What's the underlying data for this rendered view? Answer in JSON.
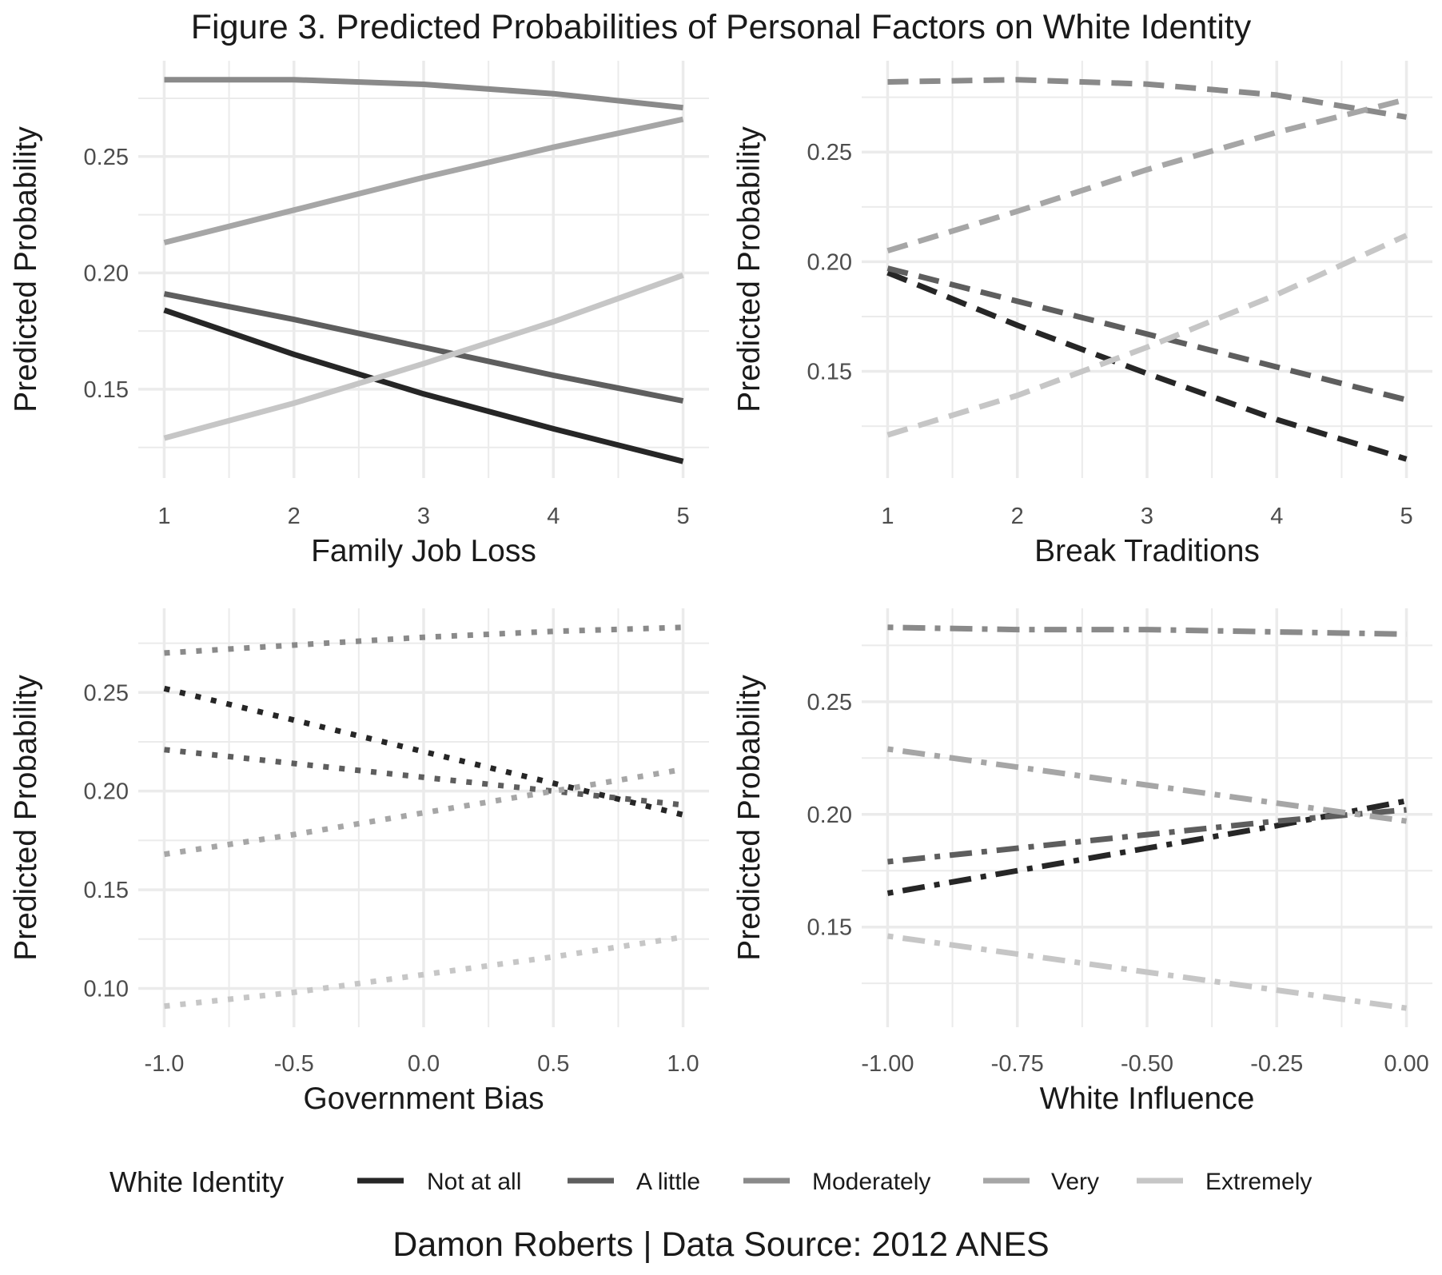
{
  "title": "Figure 3. Predicted Probabilities of Personal Factors on White Identity",
  "caption": "Damon Roberts | Data Source: 2012 ANES",
  "legend": {
    "title": "White Identity",
    "position": "bottom",
    "items": [
      "Not at all",
      "A little",
      "Moderately",
      "Very",
      "Extremely"
    ]
  },
  "colors": {
    "Not at all": "#262626",
    "A little": "#5e5e5e",
    "Moderately": "#8a8a8a",
    "Very": "#a6a6a6",
    "Extremely": "#c6c6c6",
    "grid": "#ebebeb",
    "tick_text": "#4d4d4d"
  },
  "chart_data": [
    {
      "type": "line",
      "linetype": "solid",
      "xlabel": "Family Job Loss",
      "ylabel": "Predicted Probability",
      "x": [
        1,
        2,
        3,
        4,
        5
      ],
      "xlim": [
        1,
        5
      ],
      "ylim": [
        0.12,
        0.283
      ],
      "xticks": [
        1,
        2,
        3,
        4,
        5
      ],
      "xtick_labels": [
        "1",
        "2",
        "3",
        "4",
        "5"
      ],
      "yticks": [
        0.15,
        0.2,
        0.25
      ],
      "ytick_labels": [
        "0.15",
        "0.20",
        "0.25"
      ],
      "grid": true,
      "series": [
        {
          "name": "Not at all",
          "values": [
            0.184,
            0.165,
            0.148,
            0.133,
            0.119
          ]
        },
        {
          "name": "A little",
          "values": [
            0.191,
            0.18,
            0.168,
            0.156,
            0.145
          ]
        },
        {
          "name": "Moderately",
          "values": [
            0.283,
            0.283,
            0.281,
            0.277,
            0.271
          ]
        },
        {
          "name": "Very",
          "values": [
            0.213,
            0.227,
            0.241,
            0.254,
            0.266
          ]
        },
        {
          "name": "Extremely",
          "values": [
            0.129,
            0.144,
            0.161,
            0.179,
            0.199
          ]
        }
      ]
    },
    {
      "type": "line",
      "linetype": "dashed",
      "xlabel": "Break Traditions",
      "ylabel": "Predicted Probability",
      "x": [
        1,
        2,
        3,
        4,
        5
      ],
      "xlim": [
        1,
        5
      ],
      "ylim": [
        0.11,
        0.283
      ],
      "xticks": [
        1,
        2,
        3,
        4,
        5
      ],
      "xtick_labels": [
        "1",
        "2",
        "3",
        "4",
        "5"
      ],
      "yticks": [
        0.15,
        0.2,
        0.25
      ],
      "ytick_labels": [
        "0.15",
        "0.20",
        "0.25"
      ],
      "grid": true,
      "series": [
        {
          "name": "Not at all",
          "values": [
            0.195,
            0.171,
            0.149,
            0.128,
            0.11
          ]
        },
        {
          "name": "A little",
          "values": [
            0.197,
            0.182,
            0.167,
            0.152,
            0.137
          ]
        },
        {
          "name": "Moderately",
          "values": [
            0.282,
            0.283,
            0.281,
            0.276,
            0.266
          ]
        },
        {
          "name": "Very",
          "values": [
            0.205,
            0.223,
            0.242,
            0.259,
            0.274
          ]
        },
        {
          "name": "Extremely",
          "values": [
            0.121,
            0.139,
            0.161,
            0.185,
            0.212
          ]
        }
      ]
    },
    {
      "type": "line",
      "linetype": "dotted",
      "xlabel": "Government Bias",
      "ylabel": "Predicted Probability",
      "x": [
        -1.0,
        -0.5,
        0.0,
        0.5,
        1.0
      ],
      "xlim": [
        -1,
        1
      ],
      "ylim": [
        0.09,
        0.283
      ],
      "xticks": [
        -1.0,
        -0.5,
        0.0,
        0.5,
        1.0
      ],
      "xtick_labels": [
        "-1.0",
        "-0.5",
        "0.0",
        "0.5",
        "1.0"
      ],
      "yticks": [
        0.1,
        0.15,
        0.2,
        0.25
      ],
      "ytick_labels": [
        "0.10",
        "0.15",
        "0.20",
        "0.25"
      ],
      "grid": true,
      "series": [
        {
          "name": "Not at all",
          "values": [
            0.252,
            0.236,
            0.22,
            0.204,
            0.188
          ]
        },
        {
          "name": "A little",
          "values": [
            0.221,
            0.214,
            0.207,
            0.2,
            0.193
          ]
        },
        {
          "name": "Moderately",
          "values": [
            0.27,
            0.274,
            0.278,
            0.281,
            0.283
          ]
        },
        {
          "name": "Very",
          "values": [
            0.168,
            0.178,
            0.189,
            0.2,
            0.211
          ]
        },
        {
          "name": "Extremely",
          "values": [
            0.091,
            0.098,
            0.107,
            0.116,
            0.126
          ]
        }
      ]
    },
    {
      "type": "line",
      "linetype": "dotdash",
      "xlabel": "White Influence",
      "ylabel": "Predicted Probability",
      "x": [
        -1.0,
        -0.75,
        -0.5,
        -0.25,
        0.0
      ],
      "xlim": [
        -1,
        0
      ],
      "ylim": [
        0.114,
        0.283
      ],
      "xticks": [
        -1.0,
        -0.75,
        -0.5,
        -0.25,
        0.0
      ],
      "xtick_labels": [
        "-1.00",
        "-0.75",
        "-0.50",
        "-0.25",
        "0.00"
      ],
      "yticks": [
        0.15,
        0.2,
        0.25
      ],
      "ytick_labels": [
        "0.15",
        "0.20",
        "0.25"
      ],
      "grid": true,
      "series": [
        {
          "name": "Not at all",
          "values": [
            0.165,
            0.175,
            0.185,
            0.195,
            0.206
          ]
        },
        {
          "name": "A little",
          "values": [
            0.179,
            0.185,
            0.191,
            0.197,
            0.202
          ]
        },
        {
          "name": "Moderately",
          "values": [
            0.283,
            0.282,
            0.282,
            0.281,
            0.28
          ]
        },
        {
          "name": "Very",
          "values": [
            0.229,
            0.221,
            0.213,
            0.205,
            0.197
          ]
        },
        {
          "name": "Extremely",
          "values": [
            0.146,
            0.138,
            0.13,
            0.122,
            0.114
          ]
        }
      ]
    }
  ]
}
